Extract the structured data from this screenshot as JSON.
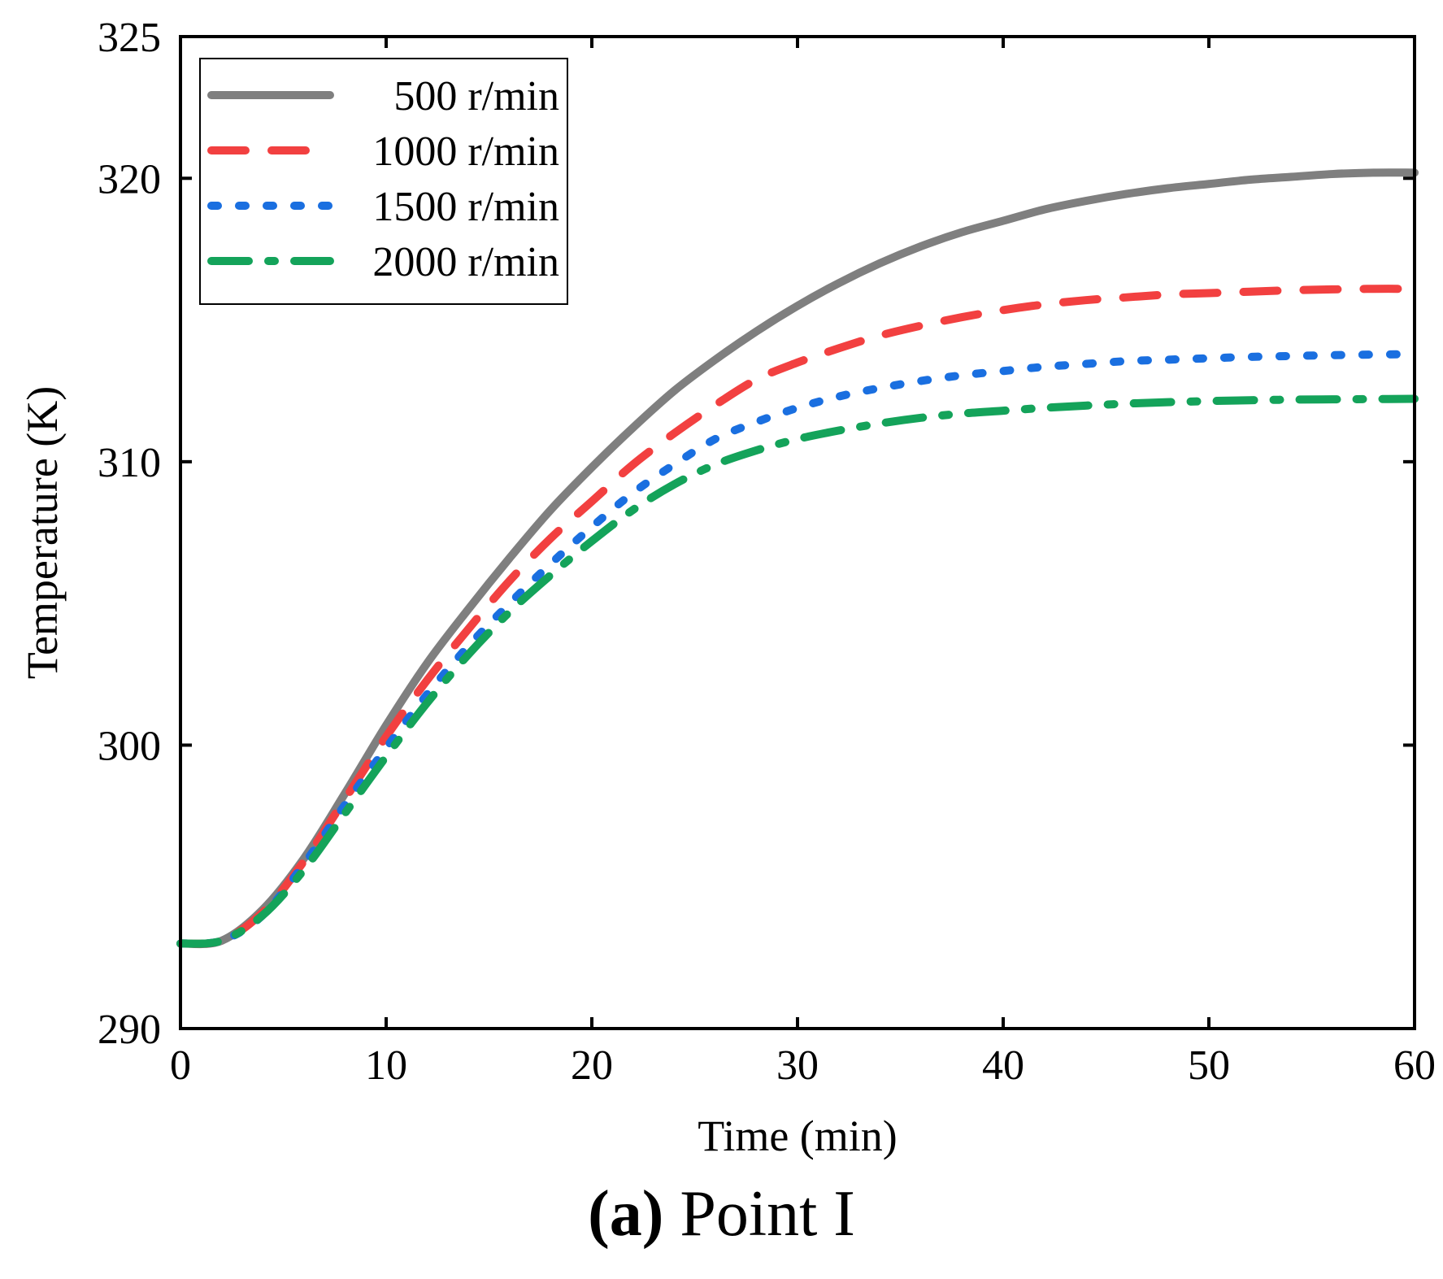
{
  "chart_data": {
    "type": "line",
    "title": "",
    "xlabel": "Time (min)",
    "ylabel": "Temperature (K)",
    "xlim": [
      0,
      60
    ],
    "ylim": [
      290,
      325
    ],
    "xticks": [
      0,
      10,
      20,
      30,
      40,
      50,
      60
    ],
    "yticks": [
      290,
      300,
      310,
      320,
      325
    ],
    "legend_position": "top-left",
    "x": [
      0,
      2,
      4,
      6,
      8,
      10,
      12,
      14,
      16,
      18,
      20,
      22,
      24,
      26,
      28,
      30,
      32,
      34,
      36,
      38,
      40,
      42,
      44,
      46,
      48,
      50,
      52,
      54,
      56,
      58,
      60
    ],
    "series": [
      {
        "name": "500 r/min",
        "color": "#7f7f7f",
        "style": "solid",
        "values": [
          293.0,
          293.1,
          294.2,
          296.0,
          298.3,
          300.7,
          302.9,
          304.8,
          306.6,
          308.3,
          309.8,
          311.2,
          312.5,
          313.6,
          314.6,
          315.5,
          316.3,
          317.0,
          317.6,
          318.1,
          318.5,
          318.9,
          319.2,
          319.45,
          319.65,
          319.8,
          319.95,
          320.05,
          320.15,
          320.2,
          320.2
        ]
      },
      {
        "name": "1000 r/min",
        "color": "#f24040",
        "style": "dashed",
        "values": [
          293.0,
          293.1,
          294.1,
          295.9,
          298.1,
          300.3,
          302.3,
          304.1,
          305.8,
          307.3,
          308.6,
          309.9,
          311.0,
          312.0,
          312.9,
          313.5,
          314.0,
          314.45,
          314.8,
          315.1,
          315.35,
          315.55,
          315.7,
          315.8,
          315.9,
          315.95,
          316.0,
          316.05,
          316.08,
          316.1,
          316.1
        ]
      },
      {
        "name": "1500 r/min",
        "color": "#1a6fe0",
        "style": "dotted",
        "values": [
          293.0,
          293.1,
          294.0,
          295.8,
          297.9,
          299.9,
          301.8,
          303.5,
          305.0,
          306.4,
          307.7,
          308.9,
          309.9,
          310.8,
          311.4,
          311.9,
          312.3,
          312.6,
          312.85,
          313.05,
          313.2,
          313.35,
          313.45,
          313.55,
          313.6,
          313.65,
          313.7,
          313.73,
          313.76,
          313.78,
          313.8
        ]
      },
      {
        "name": "2000 r/min",
        "color": "#14a35a",
        "style": "dashdot",
        "values": [
          293.0,
          293.1,
          294.0,
          295.6,
          297.6,
          299.6,
          301.5,
          303.2,
          304.7,
          306.0,
          307.2,
          308.3,
          309.2,
          309.9,
          310.4,
          310.8,
          311.1,
          311.35,
          311.55,
          311.7,
          311.8,
          311.9,
          311.98,
          312.05,
          312.1,
          312.14,
          312.17,
          312.19,
          312.2,
          312.21,
          312.22
        ]
      }
    ]
  },
  "caption": {
    "label": "(a)",
    "text": " Point I"
  }
}
